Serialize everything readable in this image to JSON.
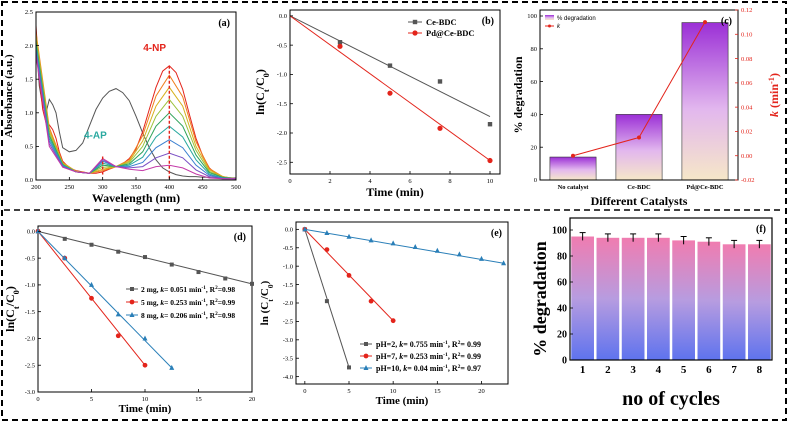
{
  "chart_data": [
    {
      "panel": "(a)",
      "type": "line",
      "xlabel": "Wavelength (nm)",
      "ylabel": "Absorbance (a.u.)",
      "xlim": [
        200,
        500
      ],
      "ylim": [
        0,
        2.5
      ],
      "xticks": [
        200,
        250,
        300,
        350,
        400,
        450,
        500
      ],
      "xtick_labels": [
        "200",
        "250",
        "300",
        "350",
        "400",
        "450",
        "500"
      ],
      "yticks": [
        0,
        0.5,
        1.0,
        1.5,
        2.0,
        2.5
      ],
      "ytick_labels": [
        "0.0",
        "0.5",
        "1.0",
        "1.5",
        "2.0",
        "2.5"
      ],
      "annotations": [
        "4-NP",
        "4-AP"
      ],
      "series": [
        {
          "color": "#555555",
          "x": [
            200,
            205,
            210,
            215,
            220,
            225,
            230,
            235,
            240,
            250,
            260,
            270,
            280,
            290,
            300,
            310,
            320,
            330,
            340,
            350,
            360,
            370,
            380,
            390,
            400,
            410,
            420,
            430,
            440,
            450,
            470,
            500
          ],
          "values": [
            2.1,
            1.4,
            1.1,
            1.0,
            1.2,
            1.12,
            1.0,
            0.72,
            0.48,
            0.42,
            0.44,
            0.55,
            0.8,
            1.05,
            1.22,
            1.32,
            1.36,
            1.3,
            1.18,
            0.95,
            0.7,
            0.48,
            0.3,
            0.18,
            0.12,
            0.08,
            0.06,
            0.05,
            0.05,
            0.04,
            0.04,
            0.03
          ]
        },
        {
          "color": "#e3241b",
          "x": [
            200,
            205,
            210,
            215,
            220,
            225,
            230,
            235,
            240,
            250,
            260,
            270,
            280,
            290,
            300,
            310,
            320,
            330,
            340,
            350,
            360,
            370,
            380,
            390,
            400,
            410,
            420,
            430,
            440,
            450,
            460,
            470,
            480,
            490,
            500
          ],
          "values": [
            2.3,
            1.5,
            1.05,
            0.85,
            0.82,
            0.75,
            0.62,
            0.42,
            0.28,
            0.18,
            0.14,
            0.12,
            0.1,
            0.1,
            0.12,
            0.16,
            0.2,
            0.24,
            0.32,
            0.46,
            0.72,
            1.05,
            1.38,
            1.62,
            1.7,
            1.6,
            1.35,
            0.98,
            0.62,
            0.36,
            0.18,
            0.09,
            0.05,
            0.03,
            0.02
          ]
        },
        {
          "color": "#f07f1e",
          "x": [
            200,
            220,
            240,
            260,
            280,
            300,
            320,
            340,
            360,
            380,
            400,
            420,
            440,
            460,
            480,
            500
          ],
          "values": [
            2.2,
            0.78,
            0.26,
            0.13,
            0.1,
            0.14,
            0.2,
            0.3,
            0.66,
            1.25,
            1.56,
            1.24,
            0.57,
            0.17,
            0.05,
            0.02
          ]
        },
        {
          "color": "#d6b11e",
          "x": [
            200,
            220,
            240,
            260,
            280,
            300,
            320,
            340,
            360,
            380,
            400,
            420,
            440,
            460,
            480,
            500
          ],
          "values": [
            2.15,
            0.74,
            0.25,
            0.13,
            0.1,
            0.16,
            0.2,
            0.28,
            0.58,
            1.1,
            1.38,
            1.1,
            0.5,
            0.15,
            0.05,
            0.02
          ]
        },
        {
          "color": "#9bc23a",
          "x": [
            200,
            220,
            240,
            260,
            280,
            300,
            320,
            340,
            360,
            380,
            400,
            420,
            440,
            460,
            480,
            500
          ],
          "values": [
            2.1,
            0.7,
            0.24,
            0.12,
            0.1,
            0.19,
            0.2,
            0.26,
            0.5,
            0.95,
            1.2,
            0.95,
            0.44,
            0.13,
            0.04,
            0.02
          ]
        },
        {
          "color": "#2ea35a",
          "x": [
            200,
            220,
            240,
            260,
            280,
            300,
            320,
            340,
            360,
            380,
            400,
            420,
            440,
            460,
            480,
            500
          ],
          "values": [
            2.05,
            0.66,
            0.23,
            0.12,
            0.1,
            0.22,
            0.2,
            0.24,
            0.42,
            0.8,
            1.0,
            0.8,
            0.37,
            0.11,
            0.04,
            0.02
          ]
        },
        {
          "color": "#2aa9a0",
          "x": [
            200,
            220,
            240,
            260,
            280,
            300,
            320,
            340,
            360,
            380,
            400,
            420,
            440,
            460,
            480,
            500
          ],
          "values": [
            2.0,
            0.62,
            0.22,
            0.12,
            0.1,
            0.25,
            0.2,
            0.22,
            0.34,
            0.64,
            0.8,
            0.64,
            0.3,
            0.09,
            0.03,
            0.02
          ]
        },
        {
          "color": "#3a7fd0",
          "x": [
            200,
            220,
            240,
            260,
            280,
            300,
            320,
            340,
            360,
            380,
            400,
            420,
            440,
            460,
            480,
            500
          ],
          "values": [
            1.95,
            0.58,
            0.21,
            0.12,
            0.1,
            0.28,
            0.2,
            0.2,
            0.26,
            0.48,
            0.6,
            0.48,
            0.22,
            0.07,
            0.03,
            0.02
          ]
        },
        {
          "color": "#7a4fc4",
          "x": [
            200,
            220,
            240,
            260,
            280,
            300,
            320,
            340,
            360,
            380,
            400,
            420,
            440,
            460,
            480,
            500
          ],
          "values": [
            1.9,
            0.54,
            0.2,
            0.12,
            0.1,
            0.3,
            0.2,
            0.18,
            0.2,
            0.33,
            0.4,
            0.33,
            0.15,
            0.05,
            0.02,
            0.02
          ]
        },
        {
          "color": "#c43aa8",
          "x": [
            200,
            220,
            240,
            260,
            280,
            300,
            320,
            340,
            360,
            380,
            400,
            420,
            440,
            460,
            480,
            500
          ],
          "values": [
            1.85,
            0.5,
            0.19,
            0.12,
            0.1,
            0.32,
            0.2,
            0.16,
            0.14,
            0.2,
            0.22,
            0.18,
            0.09,
            0.03,
            0.02,
            0.02
          ]
        }
      ]
    },
    {
      "panel": "(b)",
      "type": "scatter",
      "xlabel": "Time (min)",
      "ylabel": "ln(Ct/C0)",
      "xlim": [
        0,
        10.5
      ],
      "ylim": [
        -2.7,
        0.1
      ],
      "xticks": [
        0,
        2,
        4,
        6,
        8,
        10
      ],
      "xtick_labels": [
        "0",
        "2",
        "4",
        "6",
        "8",
        "10"
      ],
      "yticks": [
        0,
        -0.5,
        -1.0,
        -1.5,
        -2.0,
        -2.5
      ],
      "ytick_labels": [
        "0.0",
        "-0.5",
        "-1.0",
        "-1.5",
        "-2.0",
        "-2.5"
      ],
      "legend_position": "top-right",
      "series": [
        {
          "name": "Ce-BDC",
          "color": "#555555",
          "marker": "square",
          "x": [
            2.5,
            5,
            7.5,
            10
          ],
          "values": [
            -0.45,
            -0.85,
            -1.12,
            -1.85
          ],
          "fit": [
            [
              0,
              0
            ],
            [
              10,
              -1.72
            ]
          ]
        },
        {
          "name": "Pd@Ce-BDC",
          "color": "#e3241b",
          "marker": "circle",
          "x": [
            2.5,
            5,
            7.5,
            10
          ],
          "values": [
            -0.52,
            -1.32,
            -1.92,
            -2.47
          ],
          "fit": [
            [
              0,
              0
            ],
            [
              10,
              -2.47
            ]
          ]
        }
      ]
    },
    {
      "panel": "(c)",
      "type": "bar",
      "xlabel": "Different Catalysts",
      "ylabel": "% degradation",
      "ylabel_right": "k (min-1)",
      "categories": [
        "No catalyst",
        "Ce-BDC",
        "Pd@Ce-BDC"
      ],
      "ylim": [
        0,
        100
      ],
      "yticks": [
        0,
        20,
        40,
        60,
        80,
        100
      ],
      "y2lim": [
        -0.02,
        0.12
      ],
      "y2ticks": [
        -0.02,
        0.0,
        0.02,
        0.04,
        0.06,
        0.08,
        0.1,
        0.12
      ],
      "y2tick_labels": [
        "-0.02",
        "0.00",
        "0.02",
        "0.04",
        "0.06",
        "0.08",
        "0.10",
        "0.12"
      ],
      "legend_position": "top-left",
      "legend": [
        "% degradation",
        "k"
      ],
      "series": [
        {
          "name": "% degradation",
          "values": [
            14,
            40,
            96
          ]
        },
        {
          "name": "k",
          "color": "#e3241b",
          "values": [
            0.0,
            0.015,
            0.11
          ]
        }
      ]
    },
    {
      "panel": "(d)",
      "type": "scatter",
      "xlabel": "Time (min)",
      "ylabel": "ln(Ct/C0)",
      "xlim": [
        0,
        20
      ],
      "ylim": [
        -3.0,
        0.1
      ],
      "xticks": [
        0,
        5,
        10,
        15,
        20
      ],
      "xtick_labels": [
        "0",
        "5",
        "10",
        "15",
        "20"
      ],
      "yticks": [
        0,
        -0.5,
        -1.0,
        -1.5,
        -2.0,
        -2.5,
        -3.0
      ],
      "ytick_labels": [
        "0.0",
        "-0.5",
        "-1.0",
        "-1.5",
        "-2.0",
        "-2.5",
        "-3.0"
      ],
      "legend_position": "right",
      "series": [
        {
          "name": "2 mg, k= 0.051 min-1, R2=0.98",
          "color": "#555555",
          "marker": "square",
          "x": [
            0,
            2.5,
            5,
            7.5,
            10,
            12.5,
            15,
            17.5,
            20
          ],
          "values": [
            0,
            -0.14,
            -0.25,
            -0.38,
            -0.48,
            -0.62,
            -0.76,
            -0.88,
            -0.98
          ]
        },
        {
          "name": "5 mg, k= 0.253 min-1, R2=0.99",
          "color": "#e3241b",
          "marker": "circle",
          "x": [
            0,
            2.5,
            5,
            7.5,
            10
          ],
          "values": [
            0,
            -0.5,
            -1.25,
            -1.95,
            -2.5
          ]
        },
        {
          "name": "8 mg, k= 0.206 min-1, R2=0.98",
          "color": "#2a7fb8",
          "marker": "triangle",
          "x": [
            0,
            2.5,
            5,
            7.5,
            10,
            12.5
          ],
          "values": [
            0,
            -0.5,
            -1.0,
            -1.55,
            -2.0,
            -2.55
          ]
        }
      ]
    },
    {
      "panel": "(e)",
      "type": "scatter",
      "xlabel": "Time (min)",
      "ylabel": "ln (Ct/C0)",
      "xlim": [
        -1,
        23
      ],
      "ylim": [
        -4.2,
        0.2
      ],
      "xticks": [
        0,
        5,
        10,
        15,
        20
      ],
      "xtick_labels": [
        "0",
        "5",
        "10",
        "15",
        "20"
      ],
      "yticks": [
        0,
        -0.5,
        -1.0,
        -1.5,
        -2.0,
        -2.5,
        -3.0,
        -3.5,
        -4.0
      ],
      "ytick_labels": [
        "0.0",
        "-0.5",
        "-1.0",
        "-1.5",
        "-2.0",
        "-2.5",
        "-3.0",
        "-3.5",
        "-4.0"
      ],
      "legend_position": "bottom-right",
      "series": [
        {
          "name": "pH=2, k= 0.755 min-1, R2= 0.99",
          "color": "#555555",
          "marker": "square",
          "x": [
            0,
            2.5,
            5
          ],
          "values": [
            0,
            -1.95,
            -3.75
          ]
        },
        {
          "name": "pH=7, k= 0.253 min-1, R2= 0.99",
          "color": "#e3241b",
          "marker": "circle",
          "x": [
            0,
            2.5,
            5,
            7.5,
            10
          ],
          "values": [
            0,
            -0.55,
            -1.25,
            -1.95,
            -2.48
          ]
        },
        {
          "name": "pH=10, k= 0.04 min-1, R2= 0.97",
          "color": "#2a7fb8",
          "marker": "triangle",
          "x": [
            0,
            2.5,
            5,
            7.5,
            10,
            12.5,
            15,
            17.5,
            20,
            22.5
          ],
          "values": [
            0,
            -0.1,
            -0.2,
            -0.3,
            -0.38,
            -0.48,
            -0.58,
            -0.68,
            -0.8,
            -0.92
          ]
        }
      ]
    },
    {
      "panel": "(f)",
      "type": "bar",
      "xlabel": "no of cycles",
      "ylabel": "% degradation",
      "categories": [
        "1",
        "2",
        "3",
        "4",
        "5",
        "6",
        "7",
        "8"
      ],
      "ylim": [
        0,
        100
      ],
      "yticks": [
        0,
        20,
        40,
        60,
        80,
        100
      ],
      "ytick_labels": [
        "0",
        "20",
        "40",
        "60",
        "80",
        "100"
      ],
      "values": [
        95,
        94,
        94,
        94,
        92,
        91,
        89,
        89
      ],
      "errors": [
        3,
        3,
        3,
        3,
        3,
        3,
        3,
        3
      ]
    }
  ]
}
